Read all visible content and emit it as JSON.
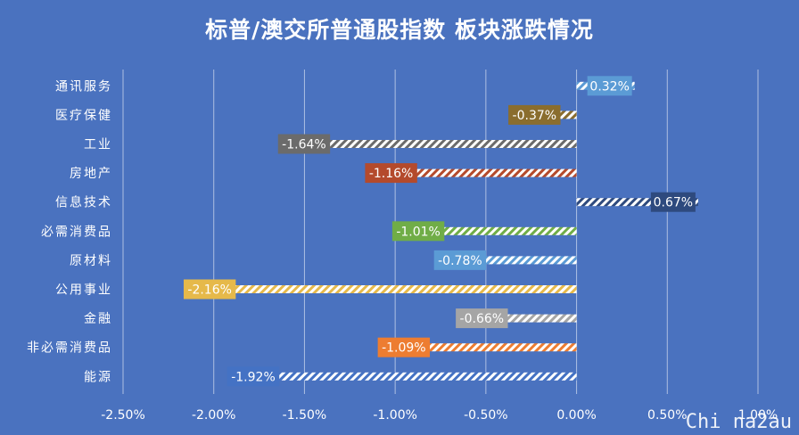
{
  "chart_data": {
    "type": "bar",
    "orientation": "horizontal",
    "title": "标普/澳交所普通股指数 板块涨跌情况",
    "xlabel": "",
    "ylabel": "",
    "xlim": [
      -0.025,
      0.01
    ],
    "x_ticks": [
      -0.025,
      -0.02,
      -0.015,
      -0.01,
      -0.005,
      0,
      0.005,
      0.01
    ],
    "x_tick_labels": [
      "-2.50%",
      "-2.00%",
      "-1.50%",
      "-1.00%",
      "-0.50%",
      "0.00%",
      "0.50%",
      "1.00%"
    ],
    "grid": true,
    "categories": [
      "通讯服务",
      "医疗保健",
      "工业",
      "房地产",
      "信息技术",
      "必需消费品",
      "原材料",
      "公用事业",
      "金融",
      "非必需消费品",
      "能源"
    ],
    "values": [
      0.0032,
      -0.0037,
      -0.0164,
      -0.0116,
      0.0067,
      -0.0101,
      -0.0078,
      -0.0216,
      -0.0066,
      -0.0109,
      -0.0192
    ],
    "data_labels": [
      "0.32%",
      "-0.37%",
      "-1.64%",
      "-1.16%",
      "0.67%",
      "-1.01%",
      "-0.78%",
      "-2.16%",
      "-0.66%",
      "-1.09%",
      "-1.92%"
    ],
    "colors": [
      "#5b9bd5",
      "#8a6d2e",
      "#6b6b6b",
      "#b44a2c",
      "#2e4a7e",
      "#70ad47",
      "#5b9bd5",
      "#e6b94a",
      "#a5a5a5",
      "#ed7d31",
      "#4472c4"
    ]
  },
  "watermark": "Chi na2au"
}
